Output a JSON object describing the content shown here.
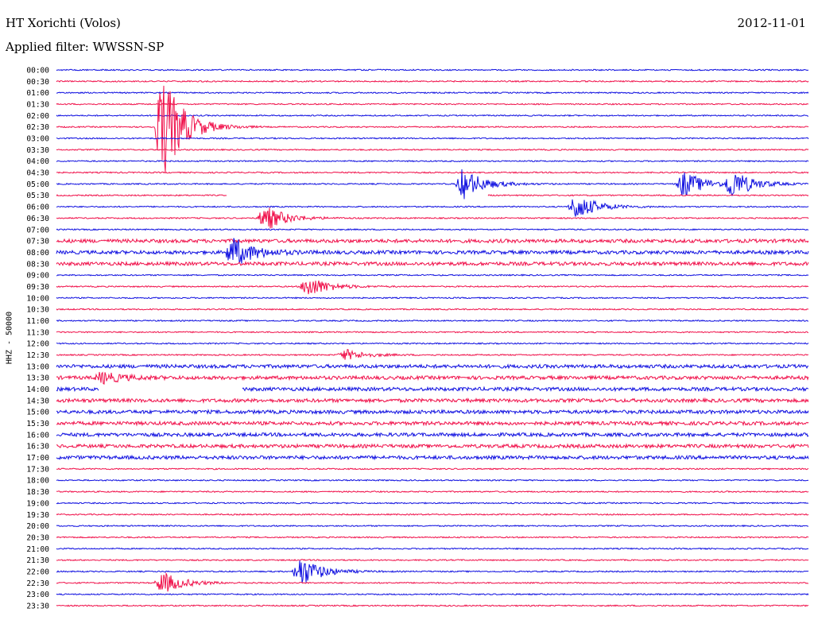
{
  "header": {
    "title": "HT Xorichti (Volos)",
    "date": "2012-11-01",
    "filter": "Applied filter: WWSSN-SP"
  },
  "colors": {
    "blue": "#1010e0",
    "red": "#f0104a"
  },
  "chart_data": {
    "type": "line",
    "title": "HT Xorichti (Volos)",
    "date": "2012-11-01",
    "ylabel": "HHZ - 50000",
    "rows": [
      "00:00",
      "00:30",
      "01:00",
      "01:30",
      "02:00",
      "02:30",
      "03:00",
      "03:30",
      "04:00",
      "04:30",
      "05:00",
      "05:30",
      "06:00",
      "06:30",
      "07:00",
      "07:30",
      "08:00",
      "08:30",
      "09:00",
      "09:30",
      "10:00",
      "10:30",
      "11:00",
      "11:30",
      "12:00",
      "12:30",
      "13:00",
      "13:30",
      "14:00",
      "14:30",
      "15:00",
      "15:30",
      "16:00",
      "16:30",
      "17:00",
      "17:30",
      "18:00",
      "18:30",
      "19:00",
      "19:30",
      "20:00",
      "20:30",
      "21:00",
      "21:30",
      "22:00",
      "22:30",
      "23:00",
      "23:30"
    ],
    "series_colors": [
      "blue",
      "red"
    ],
    "row_minutes": 30,
    "grid": false,
    "events": [
      {
        "row": "02:30",
        "minute": 4.2,
        "amplitude": 5.0
      },
      {
        "row": "05:00",
        "minute": 16.2,
        "amplitude": 1.4
      },
      {
        "row": "05:00",
        "minute": 25.0,
        "amplitude": 1.2
      },
      {
        "row": "05:00",
        "minute": 26.9,
        "amplitude": 1.3
      },
      {
        "row": "06:00",
        "minute": 20.7,
        "amplitude": 1.2
      },
      {
        "row": "06:30",
        "minute": 8.3,
        "amplitude": 1.2
      },
      {
        "row": "08:00",
        "minute": 7.0,
        "amplitude": 1.4
      },
      {
        "row": "09:30",
        "minute": 10.0,
        "amplitude": 1.0
      },
      {
        "row": "12:30",
        "minute": 11.5,
        "amplitude": 0.5
      },
      {
        "row": "13:30",
        "minute": 1.8,
        "amplitude": 0.5
      },
      {
        "row": "22:00",
        "minute": 9.7,
        "amplitude": 1.4
      },
      {
        "row": "22:30",
        "minute": 4.2,
        "amplitude": 1.0
      }
    ],
    "gaps": [
      {
        "row": "05:30",
        "from_minute": 6.8,
        "to_minute": 17.2
      },
      {
        "row": "14:00",
        "from_minute": 1.7,
        "to_minute": 7.4
      }
    ]
  }
}
